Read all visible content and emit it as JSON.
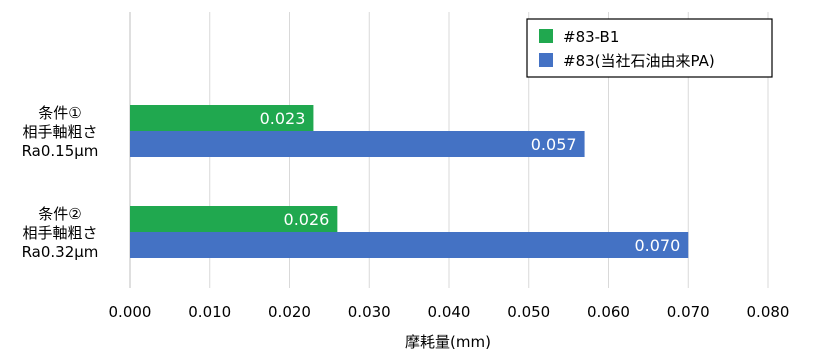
{
  "chart_data": {
    "type": "bar",
    "orientation": "horizontal",
    "title": "",
    "xlabel": "摩耗量(mm)",
    "ylabel": "",
    "xlim": [
      0,
      0.08
    ],
    "ticks": [
      "0.000",
      "0.010",
      "0.020",
      "0.030",
      "0.040",
      "0.050",
      "0.060",
      "0.070",
      "0.080"
    ],
    "grid": true,
    "legend_position": "top-right",
    "categories": [
      [
        "条件①",
        "相手軸粗さ",
        "Ra0.15μm"
      ],
      [
        "条件②",
        "相手軸粗さ",
        "Ra0.32μm"
      ]
    ],
    "series": [
      {
        "name": "#83-B1",
        "color": "#20a84f",
        "values": [
          0.023,
          0.026
        ],
        "labels": [
          "0.023",
          "0.026"
        ]
      },
      {
        "name": "#83(当社石油由来PA)",
        "color": "#4472c4",
        "values": [
          0.057,
          0.07
        ],
        "labels": [
          "0.057",
          "0.070"
        ]
      }
    ]
  }
}
